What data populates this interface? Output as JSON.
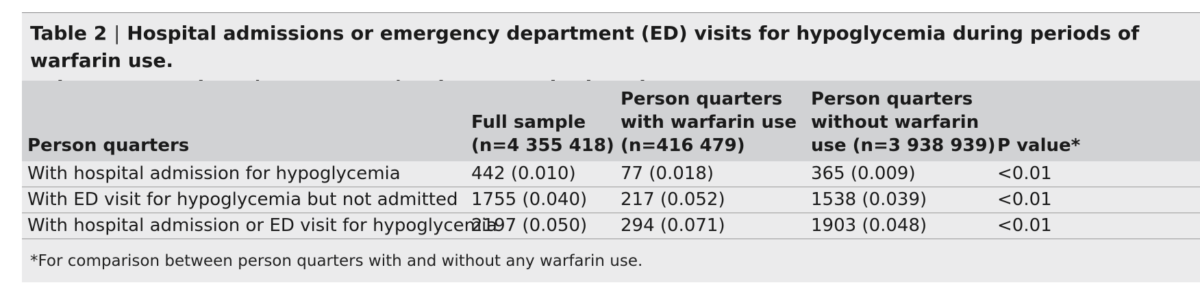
{
  "table": {
    "label": "Table 2",
    "separator": "|",
    "title_line1": "Hospital admissions or emergency department (ED) visits for hypoglycemia during periods of warfarin use.",
    "title_line2": "Values are numbers (percentages) unless stated otherwise",
    "columns": [
      "Person quarters",
      "Full sample\n(n=4 355 418)",
      "Person quarters\nwith warfarin use\n(n=416 479)",
      "Person quarters\nwithout warfarin\nuse (n=3 938 939)",
      "P value*"
    ],
    "rows": [
      [
        "With hospital admission for hypoglycemia",
        "442 (0.010)",
        "77 (0.018)",
        "365 (0.009)",
        "<0.01"
      ],
      [
        "With ED visit for hypoglycemia but not admitted",
        "1755 (0.040)",
        "217 (0.052)",
        "1538 (0.039)",
        "<0.01"
      ],
      [
        "With hospital admission or ED visit for hypoglycemia",
        "2197 (0.050)",
        "294 (0.071)",
        "1903 (0.048)",
        "<0.01"
      ]
    ],
    "footnote": "*For comparison between person quarters with and without any warfarin use."
  }
}
